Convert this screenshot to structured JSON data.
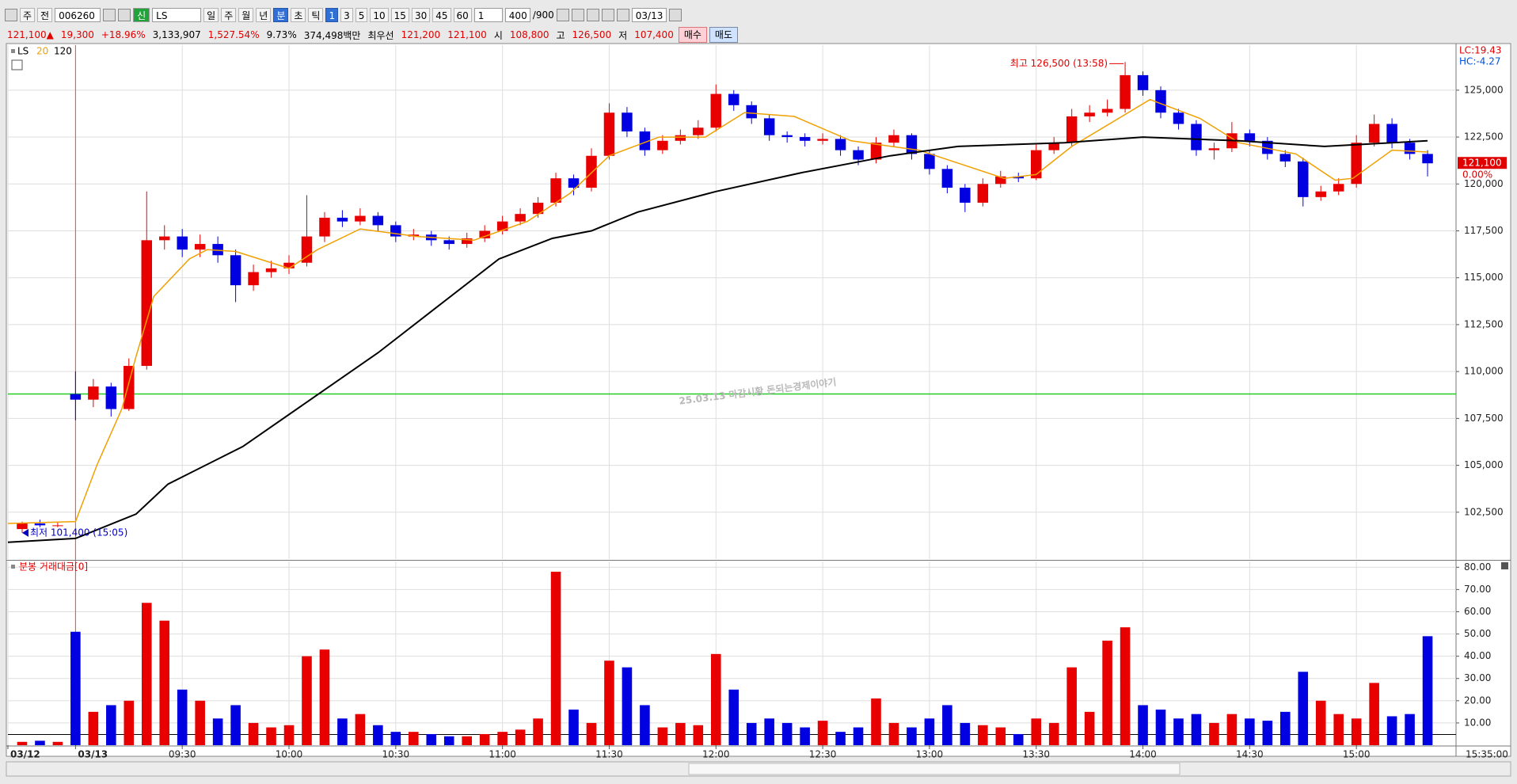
{
  "toolbar": {
    "market": "주",
    "board": "전",
    "code": "006260",
    "tag": "신",
    "name": "LS",
    "intervals": [
      "일",
      "주",
      "월",
      "년",
      "분",
      "초",
      "틱"
    ],
    "active_interval": 4,
    "periods": [
      "1",
      "3",
      "5",
      "10",
      "15",
      "30",
      "45",
      "60"
    ],
    "active_period": 0,
    "multiplier": "1",
    "count": "400",
    "max_count": "/900",
    "date": "03/13"
  },
  "quote": [
    {
      "text": "121,100▲",
      "color": "#e00000"
    },
    {
      "text": "19,300",
      "color": "#e00000"
    },
    {
      "text": "+18.96%",
      "color": "#e00000"
    },
    {
      "text": "3,133,907",
      "color": "#000000"
    },
    {
      "text": "1,527.54%",
      "color": "#e00000"
    },
    {
      "text": "9.73%",
      "color": "#000000"
    },
    {
      "text": "374,498백만",
      "color": "#000000"
    },
    {
      "text": "최우선",
      "color": "#000000"
    },
    {
      "text": "121,200",
      "color": "#e00000"
    },
    {
      "text": "121,100",
      "color": "#e00000"
    },
    {
      "text": "시",
      "color": "#000000"
    },
    {
      "text": "108,800",
      "color": "#e00000"
    },
    {
      "text": "고",
      "color": "#000000"
    },
    {
      "text": "126,500",
      "color": "#e00000"
    },
    {
      "text": "저",
      "color": "#000000"
    },
    {
      "text": "107,400",
      "color": "#e00000"
    }
  ],
  "order_buttons": {
    "buy": "매수",
    "sell": "매도"
  },
  "chart_data": [
    {
      "type": "candlestick",
      "legend_title": "LS",
      "watermark": "25.03.13 마감시황 돈되는경제이야기",
      "lc_label": "LC:19.43",
      "hc_label": "HC:-4.27",
      "last_label": "121,100",
      "last_change": "0.00%",
      "x_end_label": "15:35:00",
      "up_color": "#e80000",
      "down_color": "#0000e0",
      "xlim": [
        -19,
        388
      ],
      "xticks": [
        {
          "value": -19,
          "label": "03/12"
        },
        {
          "value": 0,
          "label": "03/13"
        },
        {
          "value": 30,
          "label": "09:30"
        },
        {
          "value": 60,
          "label": "10:00"
        },
        {
          "value": 90,
          "label": "10:30"
        },
        {
          "value": 120,
          "label": "11:00"
        },
        {
          "value": 150,
          "label": "11:30"
        },
        {
          "value": 180,
          "label": "12:00"
        },
        {
          "value": 210,
          "label": "12:30"
        },
        {
          "value": 240,
          "label": "13:00"
        },
        {
          "value": 270,
          "label": "13:30"
        },
        {
          "value": 300,
          "label": "14:00"
        },
        {
          "value": 330,
          "label": "14:30"
        },
        {
          "value": 360,
          "label": "15:00"
        }
      ],
      "ylim": [
        100000,
        127400
      ],
      "yticks": [
        {
          "value": 102500,
          "label": "102,500"
        },
        {
          "value": 105000,
          "label": "105,000"
        },
        {
          "value": 107500,
          "label": "107,500"
        },
        {
          "value": 110000,
          "label": "110,000"
        },
        {
          "value": 112500,
          "label": "112,500"
        },
        {
          "value": 115000,
          "label": "115,000"
        },
        {
          "value": 117500,
          "label": "117,500"
        },
        {
          "value": 120000,
          "label": "120,000"
        },
        {
          "value": 122500,
          "label": "122,500"
        },
        {
          "value": 125000,
          "label": "125,000"
        }
      ],
      "grid": true,
      "day_break": 0,
      "reference_line": {
        "value": 108800,
        "color": "#22cc22"
      },
      "x": [
        -15,
        -10,
        -5,
        0,
        5,
        10,
        15,
        20,
        25,
        30,
        35,
        40,
        45,
        50,
        55,
        60,
        65,
        70,
        75,
        80,
        85,
        90,
        95,
        100,
        105,
        110,
        115,
        120,
        125,
        130,
        135,
        140,
        145,
        150,
        155,
        160,
        165,
        170,
        175,
        180,
        185,
        190,
        195,
        200,
        205,
        210,
        215,
        220,
        225,
        230,
        235,
        240,
        245,
        250,
        255,
        260,
        265,
        270,
        275,
        280,
        285,
        290,
        295,
        300,
        305,
        310,
        315,
        320,
        325,
        330,
        335,
        340,
        345,
        350,
        355,
        360,
        365,
        370,
        375,
        380
      ],
      "open": [
        101600,
        101900,
        101800,
        108800,
        108500,
        109200,
        108000,
        110300,
        117000,
        117200,
        116500,
        116800,
        116200,
        114600,
        115300,
        115500,
        115800,
        117200,
        118200,
        118000,
        118300,
        117800,
        117200,
        117300,
        117000,
        116800,
        117100,
        117500,
        118000,
        118400,
        119000,
        120300,
        119800,
        121500,
        123800,
        122800,
        121800,
        122300,
        122600,
        123000,
        124800,
        124200,
        123500,
        122600,
        122500,
        122300,
        122400,
        121800,
        121300,
        122200,
        122600,
        121600,
        120800,
        119800,
        119000,
        120000,
        120400,
        120300,
        121800,
        122200,
        123600,
        123800,
        124000,
        125800,
        125000,
        123800,
        123200,
        121800,
        121900,
        122700,
        122300,
        121600,
        121200,
        119300,
        119600,
        120000,
        122200,
        123200,
        122200,
        121600
      ],
      "high": [
        102000,
        102100,
        102000,
        110000,
        109600,
        109400,
        110700,
        119600,
        117800,
        117600,
        117300,
        117200,
        116500,
        115700,
        115900,
        116200,
        119400,
        118500,
        118600,
        118700,
        118500,
        118000,
        117600,
        117500,
        117200,
        117400,
        117800,
        118300,
        118700,
        119300,
        120600,
        120500,
        121900,
        124300,
        124100,
        123000,
        122600,
        122900,
        123400,
        125300,
        125000,
        124400,
        123700,
        122800,
        122700,
        122700,
        122600,
        122000,
        122500,
        122900,
        122700,
        121800,
        121000,
        120000,
        120300,
        120700,
        120600,
        122100,
        122500,
        124000,
        124200,
        124500,
        126500,
        126000,
        125200,
        124000,
        123400,
        122200,
        123300,
        122900,
        122500,
        121800,
        121400,
        119900,
        120300,
        122600,
        123700,
        123500,
        122400,
        121800
      ],
      "low": [
        101400,
        101700,
        101700,
        107400,
        108100,
        107600,
        107900,
        110100,
        116500,
        116100,
        116100,
        115800,
        113700,
        114300,
        115000,
        115200,
        115600,
        116900,
        117700,
        117800,
        117500,
        116900,
        117000,
        116700,
        116500,
        116600,
        116900,
        117300,
        117800,
        118200,
        118800,
        119400,
        119600,
        121300,
        122500,
        121500,
        121600,
        122100,
        122400,
        122800,
        123900,
        123200,
        122300,
        122200,
        122000,
        122100,
        121500,
        121000,
        121100,
        122000,
        121300,
        120500,
        119500,
        118500,
        118800,
        119800,
        120100,
        120200,
        121600,
        122000,
        123300,
        123600,
        123800,
        124700,
        123500,
        122900,
        121500,
        121300,
        121700,
        122000,
        121300,
        120900,
        118800,
        119100,
        119400,
        119800,
        122000,
        121900,
        121300,
        120400
      ],
      "close": [
        101900,
        101800,
        101800,
        108500,
        109200,
        108000,
        110300,
        117000,
        117200,
        116500,
        116800,
        116200,
        114600,
        115300,
        115500,
        115800,
        117200,
        118200,
        118000,
        118300,
        117800,
        117200,
        117300,
        117000,
        116800,
        117100,
        117500,
        118000,
        118400,
        119000,
        120300,
        119800,
        121500,
        123800,
        122800,
        121800,
        122300,
        122600,
        123000,
        124800,
        124200,
        123500,
        122600,
        122500,
        122300,
        122400,
        121800,
        121300,
        122200,
        122600,
        121600,
        120800,
        119800,
        119000,
        120000,
        120400,
        120300,
        121800,
        122200,
        123600,
        123800,
        124000,
        125800,
        125000,
        123800,
        123200,
        121800,
        121900,
        122700,
        122300,
        121600,
        121200,
        119300,
        119600,
        120000,
        122200,
        123200,
        122200,
        121600,
        121100
      ],
      "series": [
        {
          "name": "20",
          "color": "#f0a000",
          "x": [
            -19,
            0,
            6,
            13,
            17,
            22,
            32,
            37,
            45,
            60,
            68,
            80,
            96,
            112,
            127,
            139,
            150,
            164,
            177,
            188,
            202,
            218,
            237,
            261,
            270,
            280,
            302,
            316,
            327,
            343,
            354,
            359,
            370,
            380
          ],
          "values": [
            101900,
            102000,
            105000,
            108000,
            110800,
            114000,
            116000,
            116500,
            116400,
            115500,
            116500,
            117600,
            117200,
            117000,
            118000,
            119500,
            121500,
            122500,
            122500,
            123800,
            123600,
            122300,
            121800,
            120300,
            120500,
            122000,
            124500,
            123500,
            122200,
            121600,
            120200,
            120300,
            121800,
            121700
          ]
        },
        {
          "name": "120",
          "color": "#000000",
          "x": [
            -19,
            0,
            17,
            26,
            47,
            66,
            85,
            102,
            119,
            134,
            145,
            158,
            180,
            204,
            229,
            248,
            278,
            300,
            327,
            351,
            380
          ],
          "values": [
            100900,
            101100,
            102400,
            104000,
            106000,
            108500,
            111000,
            113500,
            116000,
            117100,
            117500,
            118500,
            119600,
            120600,
            121500,
            122000,
            122200,
            122500,
            122300,
            122000,
            122300
          ]
        }
      ],
      "annotations": [
        {
          "text": "최고 126,500 (13:58)",
          "x": 295,
          "y": 126500,
          "side": "left"
        },
        {
          "text": "최저 101,400 (15:05)",
          "x": -15,
          "y": 101400,
          "side": "right"
        }
      ]
    },
    {
      "type": "bar",
      "title": "분봉 거래대금[0]",
      "ylim": [
        0,
        82.6
      ],
      "yticks": [
        {
          "value": 10,
          "label": "10.00"
        },
        {
          "value": 20,
          "label": "20.00"
        },
        {
          "value": 30,
          "label": "30.00"
        },
        {
          "value": 40,
          "label": "40.00"
        },
        {
          "value": 50,
          "label": "50.00"
        },
        {
          "value": 60,
          "label": "60.00"
        },
        {
          "value": 70,
          "label": "70.00"
        },
        {
          "value": 80,
          "label": "80.00"
        }
      ],
      "reference_line": 4.8,
      "values": [
        1.5,
        2,
        1.5,
        51,
        15,
        18,
        20,
        64,
        56,
        25,
        20,
        12,
        18,
        10,
        8,
        9,
        40,
        43,
        12,
        14,
        9,
        6,
        6,
        5,
        4,
        4,
        5,
        6,
        7,
        12,
        78,
        16,
        10,
        38,
        35,
        18,
        8,
        10,
        9,
        41,
        25,
        10,
        12,
        10,
        8,
        11,
        6,
        8,
        21,
        10,
        8,
        12,
        18,
        10,
        9,
        8,
        5,
        12,
        10,
        35,
        15,
        47,
        53,
        18,
        16,
        12,
        14,
        10,
        14,
        12,
        11,
        15,
        33,
        20,
        14,
        12,
        28,
        13,
        14,
        49
      ]
    }
  ]
}
